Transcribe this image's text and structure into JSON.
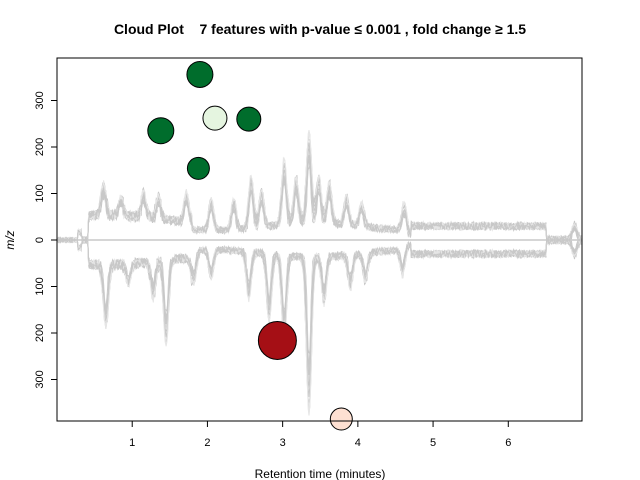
{
  "chart_data": {
    "type": "scatter",
    "title": "Cloud Plot    7 features with p-value ≤ 0.001 , fold change ≥ 1.5",
    "xlabel": "Retention time (minutes)",
    "ylabel": "m/z",
    "xlim": [
      0.0,
      6.98
    ],
    "ylim": [
      -390,
      390
    ],
    "x_ticks": [
      "1",
      "2",
      "3",
      "4",
      "5",
      "6"
    ],
    "y_ticks_upper": [
      "0",
      "100",
      "200",
      "300"
    ],
    "y_ticks_lower": [
      "100",
      "200",
      "300"
    ],
    "grid": false,
    "legend": "none",
    "colors": {
      "trace": "#c8c8c8",
      "trace_faint": "#e6e6e6",
      "up_dark": "#006d2c",
      "up_light": "#e5f5e0",
      "down_dark": "#a50f15",
      "down_light": "#fee0d2"
    },
    "series": [
      {
        "direction": "up",
        "points": [
          {
            "x": 1.9,
            "y": 356,
            "r": 13,
            "color": "#006d2c"
          },
          {
            "x": 2.1,
            "y": 262,
            "r": 12,
            "color": "#e5f5e0"
          },
          {
            "x": 2.55,
            "y": 260,
            "r": 12,
            "color": "#006d2c"
          },
          {
            "x": 1.38,
            "y": 235,
            "r": 13,
            "color": "#006d2c"
          },
          {
            "x": 1.88,
            "y": 154,
            "r": 11,
            "color": "#006d2c"
          }
        ]
      },
      {
        "direction": "down",
        "points": [
          {
            "x": 2.93,
            "y": 216,
            "r": 19,
            "color": "#a50f15"
          },
          {
            "x": 3.78,
            "y": 385,
            "r": 11,
            "color": "#fee0d2"
          }
        ]
      }
    ]
  }
}
